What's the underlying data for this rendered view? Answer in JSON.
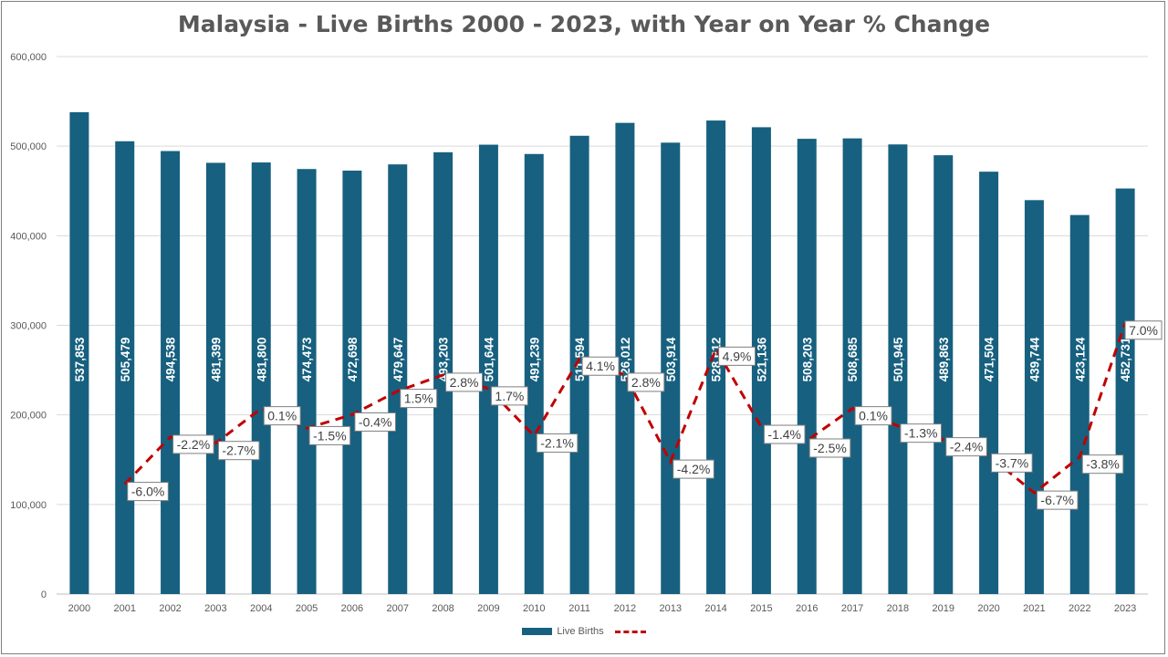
{
  "chart_data": {
    "type": "bar",
    "title": "Malaysia - Live Births 2000 - 2023, with Year on Year % Change",
    "categories": [
      "2000",
      "2001",
      "2002",
      "2003",
      "2004",
      "2005",
      "2006",
      "2007",
      "2008",
      "2009",
      "2010",
      "2011",
      "2012",
      "2013",
      "2014",
      "2015",
      "2016",
      "2017",
      "2018",
      "2019",
      "2020",
      "2021",
      "2022",
      "2023"
    ],
    "series": [
      {
        "name": "Live Births",
        "type": "bar",
        "color": "#17607f",
        "values": [
          537853,
          505479,
          494538,
          481399,
          481800,
          474473,
          472698,
          479647,
          493203,
          501644,
          491239,
          511594,
          526012,
          503914,
          528612,
          521136,
          508203,
          508685,
          501945,
          489863,
          471504,
          439744,
          423124,
          452731
        ],
        "labels": [
          "537,853",
          "505,479",
          "494,538",
          "481,399",
          "481,800",
          "474,473",
          "472,698",
          "479,647",
          "493,203",
          "501,644",
          "491,239",
          "511,594",
          "526,012",
          "503,914",
          "528,612",
          "521,136",
          "508,203",
          "508,685",
          "501,945",
          "489,863",
          "471,504",
          "439,744",
          "423,124",
          "452,731"
        ]
      },
      {
        "name": "",
        "type": "line",
        "style": "dashed",
        "color": "#c00000",
        "values": [
          null,
          -6.0,
          -2.2,
          -2.7,
          0.1,
          -1.5,
          -0.4,
          1.5,
          2.8,
          1.7,
          -2.1,
          4.1,
          2.8,
          -4.2,
          4.9,
          -1.4,
          -2.5,
          0.1,
          -1.3,
          -2.4,
          -3.7,
          -6.7,
          -3.8,
          7.0
        ],
        "labels": [
          null,
          "-6.0%",
          "-2.2%",
          "-2.7%",
          "0.1%",
          "-1.5%",
          "-0.4%",
          "1.5%",
          "2.8%",
          "1.7%",
          "-2.1%",
          "4.1%",
          "2.8%",
          "-4.2%",
          "4.9%",
          "-1.4%",
          "-2.5%",
          "0.1%",
          "-1.3%",
          "-2.4%",
          "-3.7%",
          "-6.7%",
          "-3.8%",
          "7.0%"
        ]
      }
    ],
    "y_axis": {
      "min": 0,
      "max": 600000,
      "ticks": [
        0,
        100000,
        200000,
        300000,
        400000,
        500000,
        600000
      ],
      "tick_labels": [
        "0",
        "100,000",
        "200,000",
        "300,000",
        "400,000",
        "500,000",
        "600,000"
      ]
    },
    "grid": true,
    "legend": {
      "position": "bottom",
      "entries": [
        {
          "label": "Live Births",
          "kind": "bar",
          "color": "#17607f"
        },
        {
          "label": "",
          "kind": "dashed-line",
          "color": "#c00000"
        }
      ]
    }
  }
}
